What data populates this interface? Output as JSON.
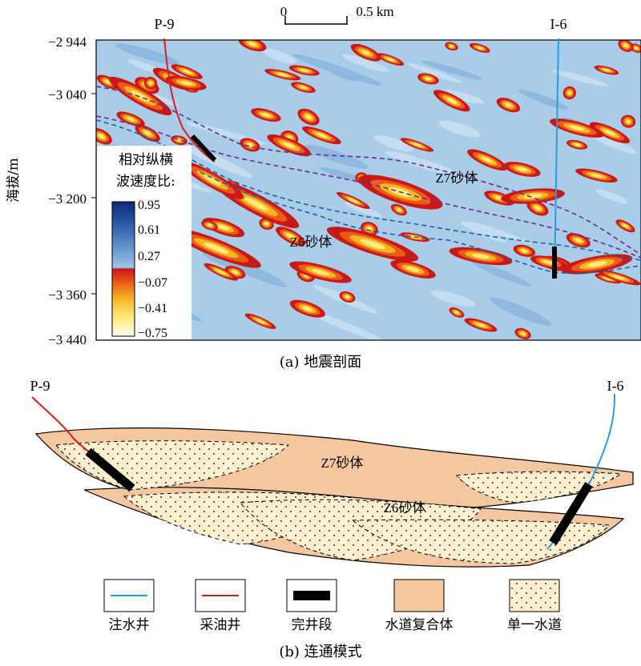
{
  "panel_a": {
    "caption": "(a) 地震剖面",
    "y_axis": {
      "label": "海拔/m",
      "ticks": [
        "−2 944",
        "−3 040",
        "−3 200",
        "−3 360",
        "−3 440"
      ]
    },
    "scale_bar": {
      "start": "0",
      "end": "0.5 km"
    },
    "wells": {
      "producer": "P-9",
      "injector": "I-6"
    },
    "sand_labels": {
      "z7": "Z7砂体",
      "z6": "Z6砂体"
    },
    "colorbar": {
      "title_line1": "相对纵横",
      "title_line2": "波速度比:",
      "ticks": [
        "0.95",
        "0.61",
        "0.27",
        "−0.07",
        "−0.41",
        "−0.75"
      ]
    }
  },
  "panel_b": {
    "caption": "(b) 连通模式",
    "wells": {
      "producer": "P-9",
      "injector": "I-6"
    },
    "sand_labels": {
      "z7": "Z7砂体",
      "z6": "Z6砂体"
    },
    "colors": {
      "injector": "#2b9be0",
      "producer": "#d42020",
      "completion": "#000000",
      "channel_complex": "#f4c7a1",
      "single_channel": "#fbefd0"
    }
  },
  "legend": [
    {
      "key": "injector",
      "label": "注水井"
    },
    {
      "key": "producer",
      "label": "采油井"
    },
    {
      "key": "completion",
      "label": "完井段"
    },
    {
      "key": "channel_complex",
      "label": "水道复合体"
    },
    {
      "key": "single_channel",
      "label": "单一水道"
    }
  ]
}
